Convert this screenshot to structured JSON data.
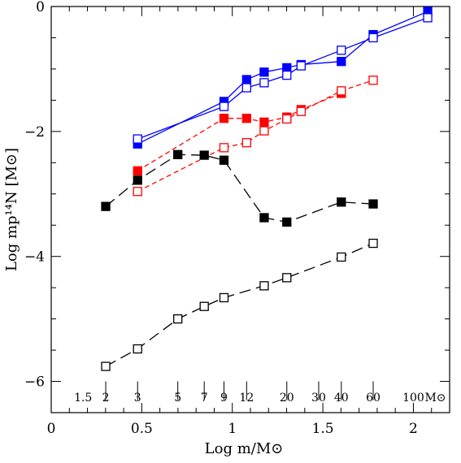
{
  "chart_data": {
    "type": "line",
    "title": "",
    "xlabel": "Log m/M⊙",
    "ylabel": "Log mp¹⁴N [M⊙]",
    "xlim": [
      0,
      2.2
    ],
    "ylim": [
      -6.5,
      0
    ],
    "x_ticks": [
      "0",
      "0.5",
      "1",
      "1.5",
      "2"
    ],
    "y_ticks": [
      "0",
      "−2",
      "−4",
      "−6"
    ],
    "mass_scale": {
      "unit": "M⊙",
      "labels": [
        "1.5",
        "2",
        "3",
        "5",
        "7",
        "9",
        "12",
        "20",
        "30",
        "40",
        "60",
        "100"
      ],
      "log_m": [
        0.176,
        0.301,
        0.477,
        0.699,
        0.845,
        0.954,
        1.079,
        1.301,
        1.477,
        1.602,
        1.778,
        2.0
      ]
    },
    "series": [
      {
        "color": "#0000ff",
        "marker": "filled-square",
        "line": "solid",
        "x": [
          0.477,
          0.954,
          1.079,
          1.176,
          1.301,
          1.38,
          1.602,
          1.778,
          2.079
        ],
        "y": [
          -2.2,
          -1.52,
          -1.17,
          -1.05,
          -0.98,
          -0.93,
          -0.88,
          -0.45,
          -0.08
        ]
      },
      {
        "color": "#0000ff",
        "marker": "open-square",
        "line": "solid",
        "x": [
          0.477,
          0.954,
          1.079,
          1.176,
          1.301,
          1.38,
          1.602,
          1.778,
          2.079
        ],
        "y": [
          -2.12,
          -1.6,
          -1.3,
          -1.22,
          -1.1,
          -0.95,
          -0.7,
          -0.5,
          -0.18
        ]
      },
      {
        "color": "#ff0000",
        "marker": "filled-square",
        "line": "dashed",
        "x": [
          0.477,
          0.954,
          1.079,
          1.176,
          1.301,
          1.38,
          1.602
        ],
        "y": [
          -2.63,
          -1.79,
          -1.79,
          -1.85,
          -1.77,
          -1.65,
          -1.39
        ]
      },
      {
        "color": "#ff0000",
        "marker": "open-square",
        "line": "dashed",
        "x": [
          0.477,
          0.954,
          1.079,
          1.176,
          1.301,
          1.38,
          1.602,
          1.778
        ],
        "y": [
          -2.96,
          -2.26,
          -2.18,
          -1.99,
          -1.8,
          -1.68,
          -1.35,
          -1.18
        ]
      },
      {
        "color": "#000000",
        "marker": "filled-square",
        "line": "long-dashed",
        "x": [
          0.301,
          0.477,
          0.699,
          0.845,
          0.954,
          1.176,
          1.301,
          1.602,
          1.778
        ],
        "y": [
          -3.2,
          -2.78,
          -2.37,
          -2.38,
          -2.46,
          -3.38,
          -3.45,
          -3.13,
          -3.16
        ]
      },
      {
        "color": "#000000",
        "marker": "open-square",
        "line": "long-dashed",
        "x": [
          0.301,
          0.477,
          0.699,
          0.845,
          0.954,
          1.176,
          1.301,
          1.602,
          1.778
        ],
        "y": [
          -5.76,
          -5.48,
          -5.0,
          -4.8,
          -4.66,
          -4.47,
          -4.34,
          -4.01,
          -3.79
        ]
      }
    ]
  }
}
